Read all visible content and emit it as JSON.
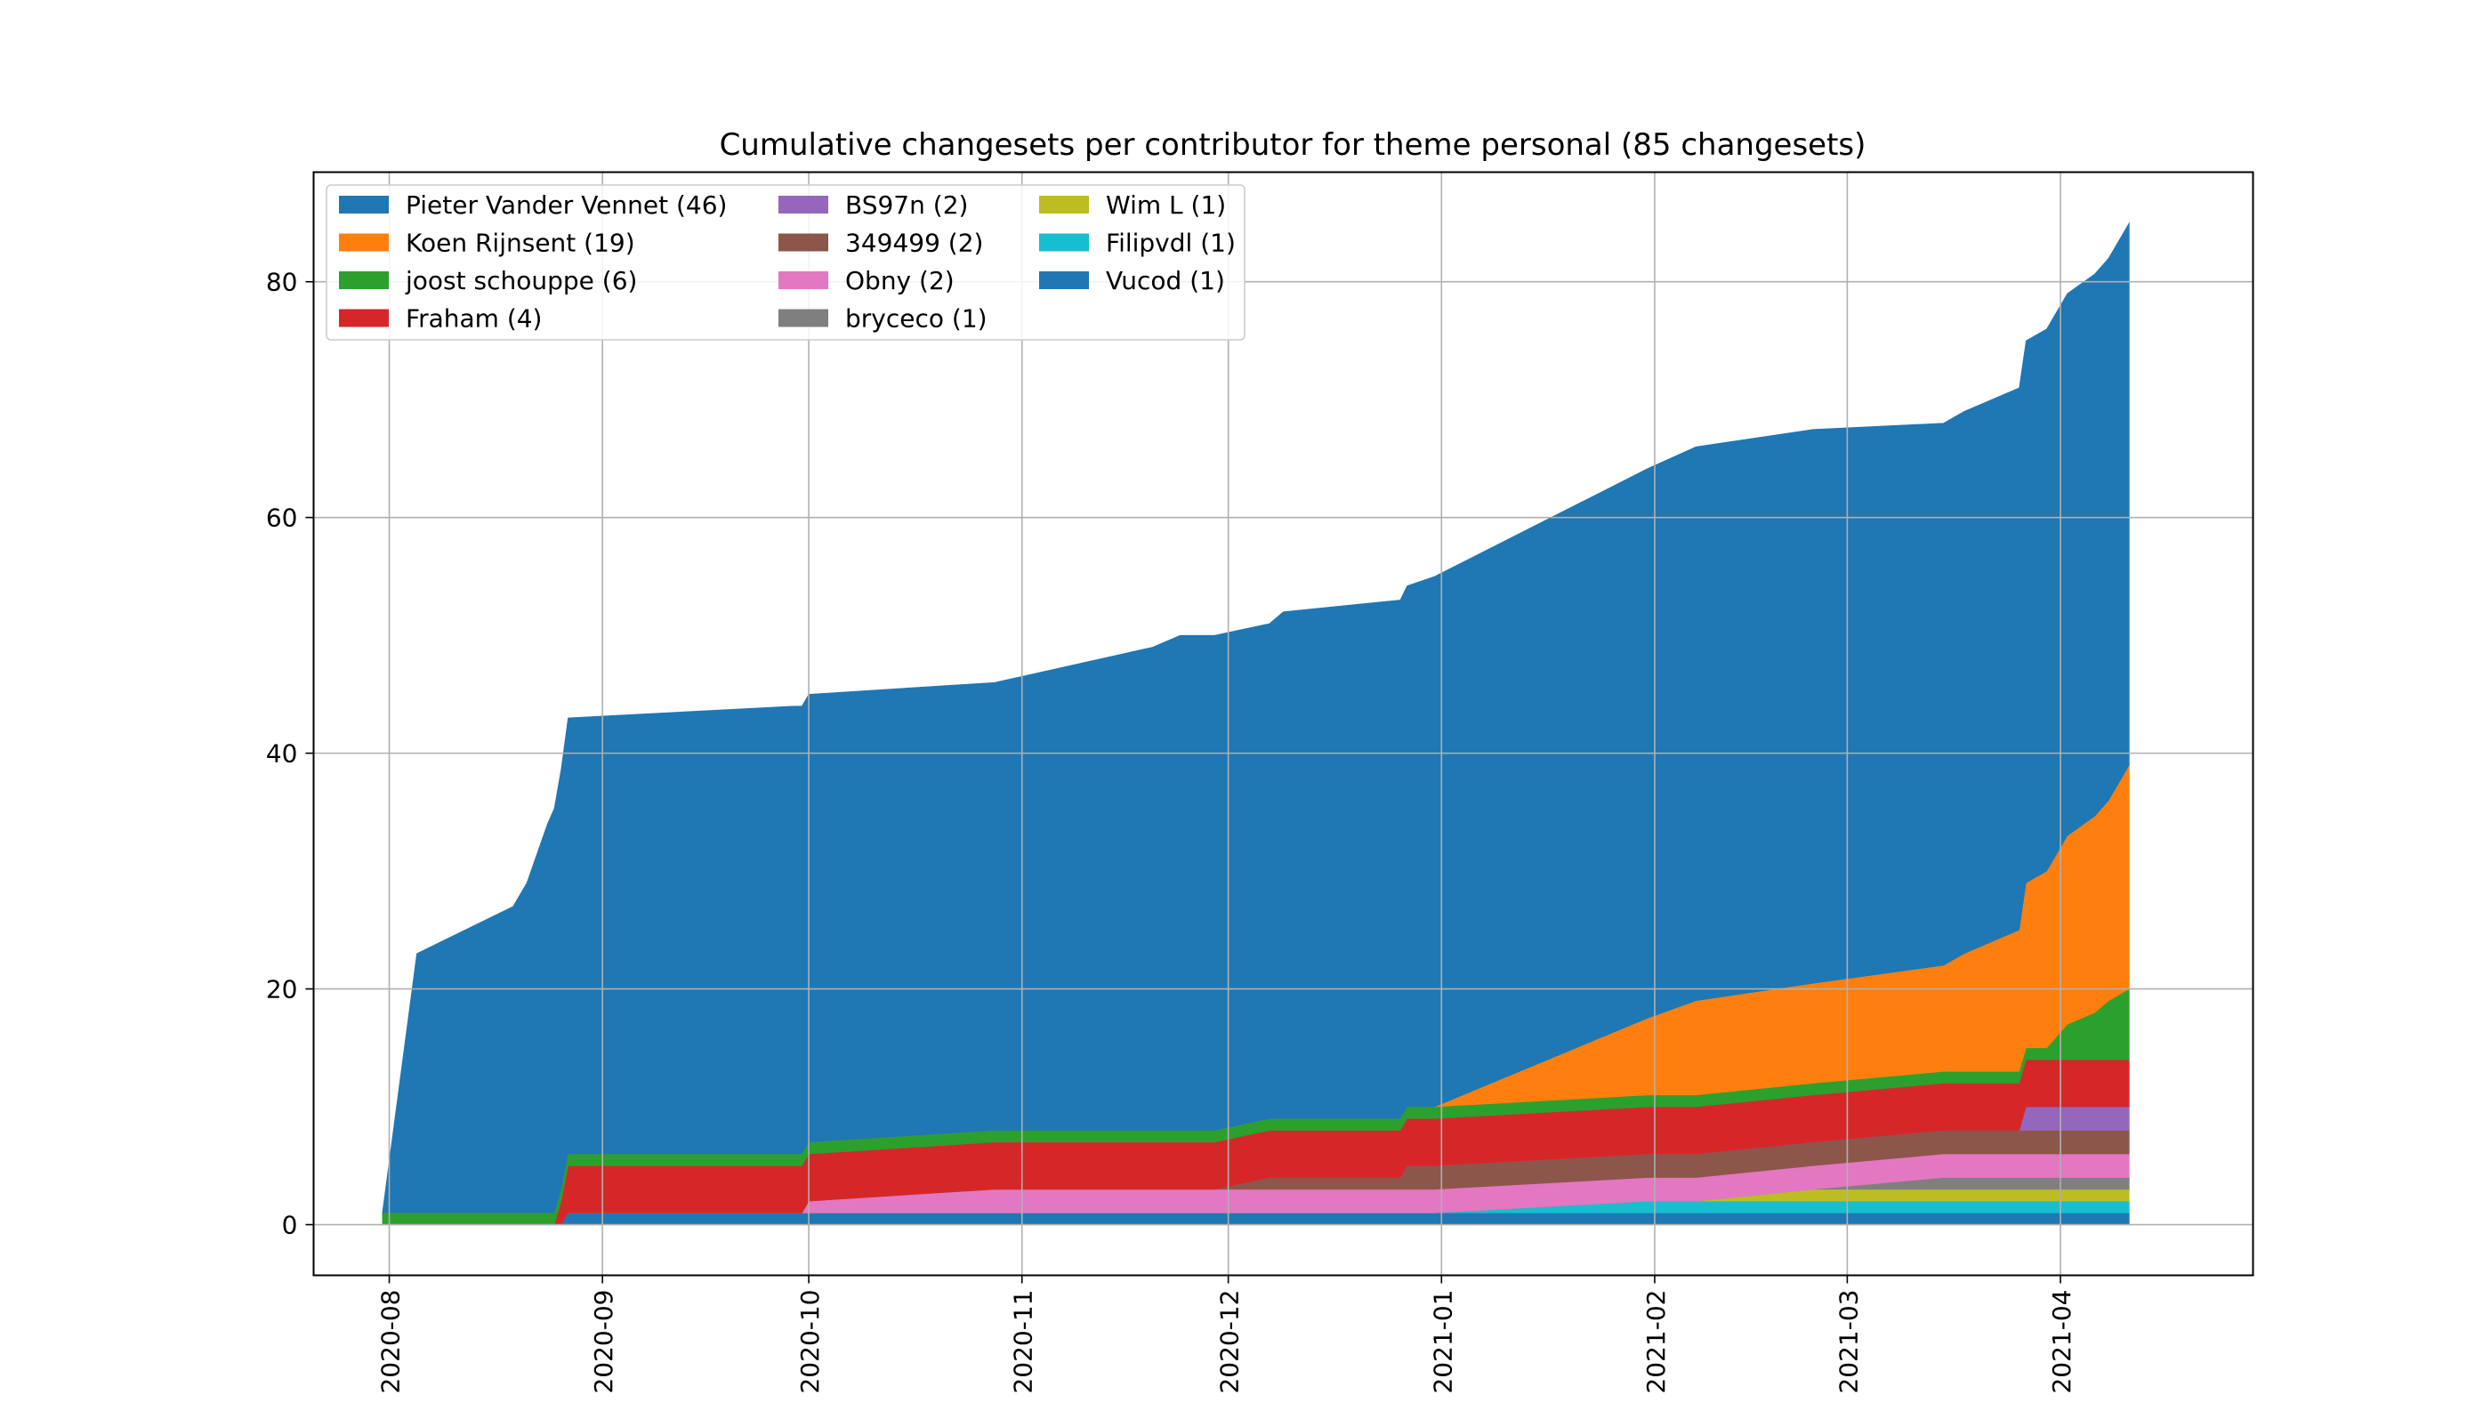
{
  "chart_data": {
    "type": "area",
    "stacked": true,
    "title": "Cumulative changesets per contributor for theme personal (85 changesets)",
    "xlabel": "",
    "ylabel": "",
    "x_ticks": [
      "2020-08",
      "2020-09",
      "2020-10",
      "2020-11",
      "2020-12",
      "2021-01",
      "2021-02",
      "2021-03",
      "2021-04"
    ],
    "y_ticks": [
      0,
      20,
      40,
      60,
      80
    ],
    "xlim": [
      "2020-07-21",
      "2021-04-29"
    ],
    "ylim": [
      -4.3,
      89.3
    ],
    "grid": true,
    "legend_position": "upper-left",
    "series": [
      {
        "name": "Vucod (1)",
        "color": "#1f77b4",
        "points": [
          [
            "2020-07-31",
            0
          ],
          [
            "2020-08-26",
            0
          ],
          [
            "2020-08-27",
            1
          ],
          [
            "2021-04-11",
            1
          ]
        ]
      },
      {
        "name": "Filipvdl (1)",
        "color": "#17becf",
        "points": [
          [
            "2020-07-31",
            0
          ],
          [
            "2020-12-31",
            0
          ],
          [
            "2021-01-31",
            1
          ],
          [
            "2021-04-11",
            1
          ]
        ]
      },
      {
        "name": "Wim L (1)",
        "color": "#bcbd22",
        "points": [
          [
            "2020-07-31",
            0
          ],
          [
            "2021-02-07",
            0
          ],
          [
            "2021-02-24",
            1
          ],
          [
            "2021-04-11",
            1
          ]
        ]
      },
      {
        "name": "bryceco (1)",
        "color": "#7f7f7f",
        "points": [
          [
            "2020-07-31",
            0
          ],
          [
            "2021-02-24",
            0
          ],
          [
            "2021-03-15",
            1
          ],
          [
            "2021-04-11",
            1
          ]
        ]
      },
      {
        "name": "Obny (2)",
        "color": "#e377c2",
        "points": [
          [
            "2020-07-31",
            0
          ],
          [
            "2020-09-30",
            0
          ],
          [
            "2020-10-01",
            1
          ],
          [
            "2020-10-28",
            2
          ],
          [
            "2020-12-31",
            2
          ],
          [
            "2021-02-07",
            2
          ],
          [
            "2021-04-11",
            2
          ]
        ]
      },
      {
        "name": "349499 (2)",
        "color": "#8c564b",
        "points": [
          [
            "2020-07-31",
            0
          ],
          [
            "2020-11-29",
            0
          ],
          [
            "2020-12-07",
            1
          ],
          [
            "2020-12-26",
            1
          ],
          [
            "2020-12-27",
            2
          ],
          [
            "2021-04-11",
            2
          ]
        ]
      },
      {
        "name": "BS97n (2)",
        "color": "#9467bd",
        "points": [
          [
            "2020-07-31",
            0
          ],
          [
            "2021-03-26",
            0
          ],
          [
            "2021-03-27",
            2
          ],
          [
            "2021-04-11",
            2
          ]
        ]
      },
      {
        "name": "Fraham (4)",
        "color": "#d62728",
        "points": [
          [
            "2020-07-31",
            0
          ],
          [
            "2020-08-25",
            0
          ],
          [
            "2020-08-27",
            4
          ],
          [
            "2021-04-11",
            4
          ]
        ]
      },
      {
        "name": "joost schouppe (6)",
        "color": "#2ca02c",
        "points": [
          [
            "2020-07-31",
            1
          ],
          [
            "2020-12-26",
            1
          ],
          [
            "2020-12-27",
            1
          ],
          [
            "2021-03-26",
            1
          ],
          [
            "2021-03-27",
            1
          ],
          [
            "2021-03-30",
            1
          ],
          [
            "2021-04-02",
            3
          ],
          [
            "2021-04-06",
            4
          ],
          [
            "2021-04-08",
            5
          ],
          [
            "2021-04-11",
            6
          ]
        ]
      },
      {
        "name": "Koen Rijnsent (19)",
        "color": "#ff7f0e",
        "points": [
          [
            "2020-07-31",
            0
          ],
          [
            "2020-12-31",
            0
          ],
          [
            "2021-02-07",
            8
          ],
          [
            "2021-03-15",
            9
          ],
          [
            "2021-03-18",
            10
          ],
          [
            "2021-03-26",
            12
          ],
          [
            "2021-03-27",
            14
          ],
          [
            "2021-03-30",
            15
          ],
          [
            "2021-04-02",
            16
          ],
          [
            "2021-04-08",
            17
          ],
          [
            "2021-04-11",
            19
          ]
        ]
      },
      {
        "name": "Pieter Vander Vennet (46)",
        "color": "#1f77b4",
        "points": [
          [
            "2020-07-31",
            0
          ],
          [
            "2020-08-05",
            22
          ],
          [
            "2020-08-19",
            26
          ],
          [
            "2020-08-21",
            28
          ],
          [
            "2020-08-24",
            33
          ],
          [
            "2020-08-27",
            37
          ],
          [
            "2020-09-29",
            38
          ],
          [
            "2020-10-28",
            38
          ],
          [
            "2020-11-20",
            41
          ],
          [
            "2020-11-24",
            42
          ],
          [
            "2020-12-07",
            42
          ],
          [
            "2020-12-09",
            43
          ],
          [
            "2020-12-26",
            44
          ],
          [
            "2020-12-31",
            45
          ],
          [
            "2021-02-07",
            47
          ],
          [
            "2021-02-24",
            47
          ],
          [
            "2021-03-15",
            46
          ],
          [
            "2021-03-18",
            46
          ],
          [
            "2021-03-26",
            46
          ],
          [
            "2021-03-27",
            46
          ],
          [
            "2021-03-30",
            46
          ],
          [
            "2021-04-02",
            46
          ],
          [
            "2021-04-08",
            46
          ],
          [
            "2021-04-11",
            46
          ]
        ]
      }
    ],
    "legend": [
      "Pieter Vander Vennet (46)",
      "Koen Rijnsent (19)",
      "joost schouppe (6)",
      "Fraham (4)",
      "BS97n (2)",
      "349499 (2)",
      "Obny (2)",
      "bryceco (1)",
      "Wim L (1)",
      "Filipvdl (1)",
      "Vucod (1)"
    ],
    "legend_colors": [
      "#1f77b4",
      "#ff7f0e",
      "#2ca02c",
      "#d62728",
      "#9467bd",
      "#8c564b",
      "#e377c2",
      "#7f7f7f",
      "#bcbd22",
      "#17becf",
      "#1f77b4"
    ],
    "grid_color": "#b0b0b0"
  }
}
